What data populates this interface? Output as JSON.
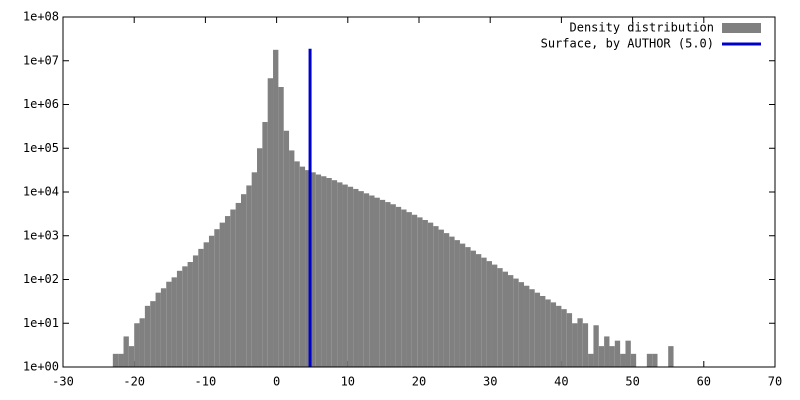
{
  "chart_data": {
    "type": "histogram",
    "log_y": true,
    "bins": [
      -23,
      -22.25,
      -21.5,
      -20.75,
      -20,
      -19.25,
      -18.5,
      -17.75,
      -17,
      -16.25,
      -15.5,
      -14.75,
      -14,
      -13.25,
      -12.5,
      -11.75,
      -11,
      -10.25,
      -9.5,
      -8.75,
      -8,
      -7.25,
      -6.5,
      -5.75,
      -5,
      -4.25,
      -3.5,
      -2.75,
      -2,
      -1.25,
      -0.5,
      0.25,
      1,
      1.75,
      2.5,
      3.25,
      4,
      4.75,
      5.5,
      6.25,
      7,
      7.75,
      8.5,
      9.25,
      10,
      10.75,
      11.5,
      12.25,
      13,
      13.75,
      14.5,
      15.25,
      16,
      16.75,
      17.5,
      18.25,
      19,
      19.75,
      20.5,
      21.25,
      22,
      22.75,
      23.5,
      24.25,
      25,
      25.75,
      26.5,
      27.25,
      28,
      28.75,
      29.5,
      30.25,
      31,
      31.75,
      32.5,
      33.25,
      34,
      34.75,
      35.5,
      36.25,
      37,
      37.75,
      38.5,
      39.25,
      40,
      40.75,
      41.5,
      42.25,
      43,
      43.75,
      44.5,
      45.25,
      46,
      46.75,
      47.5,
      48.25,
      49,
      49.75,
      50.5,
      51.25,
      52,
      52.75,
      53.5,
      54.25,
      55,
      55.75
    ],
    "series": [
      {
        "name": "Density distribution",
        "color": "#808080",
        "values": [
          2,
          2,
          5,
          3,
          10,
          13,
          25,
          32,
          50,
          63,
          89,
          112,
          158,
          200,
          251,
          355,
          501,
          708,
          1000,
          1413,
          1995,
          2818,
          3981,
          5623,
          8913,
          14125,
          28184,
          100000,
          398107,
          3981072,
          17782794,
          2511886,
          251189,
          89125,
          50119,
          38019,
          31623,
          28184,
          25119,
          22909,
          20893,
          18621,
          16596,
          14791,
          13183,
          11749,
          10471,
          9333,
          8318,
          7413,
          6607,
          5888,
          5248,
          4571,
          3981,
          3467,
          3020,
          2630,
          2291,
          1995,
          1660,
          1380,
          1148,
          955,
          794,
          661,
          550,
          457,
          380,
          316,
          263,
          219,
          182,
          151,
          126,
          105,
          87,
          72,
          60,
          50,
          42,
          35,
          30,
          25,
          21,
          17,
          10,
          13,
          10,
          2,
          9,
          3,
          5,
          3,
          4,
          2,
          4,
          2,
          null,
          null,
          2,
          2,
          null,
          null,
          3
        ]
      },
      {
        "name": "Surface, by AUTHOR (5.0)",
        "color": "#0000cc",
        "x": 4.7
      }
    ],
    "xlim": [
      -30,
      70
    ],
    "xticks": [
      -30,
      -20,
      -10,
      0,
      10,
      20,
      30,
      40,
      50,
      60,
      70
    ],
    "ylim": [
      1,
      100000000
    ],
    "yticks": [
      {
        "value": 1,
        "label": "1e+00"
      },
      {
        "value": 10,
        "label": "1e+01"
      },
      {
        "value": 100,
        "label": "1e+02"
      },
      {
        "value": 1000,
        "label": "1e+03"
      },
      {
        "value": 10000,
        "label": "1e+04"
      },
      {
        "value": 100000,
        "label": "1e+05"
      },
      {
        "value": 1000000,
        "label": "1e+06"
      },
      {
        "value": 10000000,
        "label": "1e+07"
      },
      {
        "value": 100000000,
        "label": "1e+08"
      }
    ],
    "legend": "top-right"
  }
}
